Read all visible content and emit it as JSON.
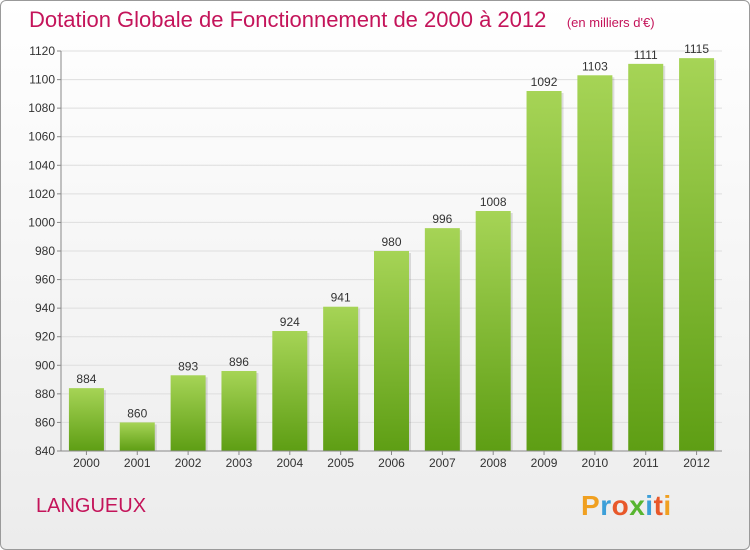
{
  "title": "Dotation Globale de Fonctionnement de 2000 à 2012",
  "subtitle": "(en milliers d'€)",
  "commune": "LANGUEUX",
  "logo": {
    "letters": [
      "P",
      "r",
      "o",
      "x",
      "i",
      "t",
      "i"
    ],
    "colors": [
      "#f0a020",
      "#3c9fd8",
      "#e8582a",
      "#58b530",
      "#3c9fd8",
      "#e8582a",
      "#f0a020"
    ]
  },
  "colors": {
    "bar_top": "#a6d456",
    "bar_bottom": "#5e9e14",
    "title": "#c4145a"
  },
  "chart_data": {
    "type": "bar",
    "categories": [
      "2000",
      "2001",
      "2002",
      "2003",
      "2004",
      "2005",
      "2006",
      "2007",
      "2008",
      "2009",
      "2010",
      "2011",
      "2012"
    ],
    "values": [
      884,
      860,
      893,
      896,
      924,
      941,
      980,
      996,
      1008,
      1092,
      1103,
      1111,
      1115
    ],
    "value_labels": [
      "884",
      "860",
      "893",
      "896",
      "924",
      "941",
      "980",
      "996",
      "1008",
      "1092",
      "1103",
      "1111",
      "1115"
    ],
    "ylim": [
      840,
      1120
    ],
    "yticks": [
      840,
      860,
      880,
      900,
      920,
      940,
      960,
      980,
      1000,
      1020,
      1040,
      1060,
      1080,
      1100,
      1120
    ],
    "grid": true
  }
}
